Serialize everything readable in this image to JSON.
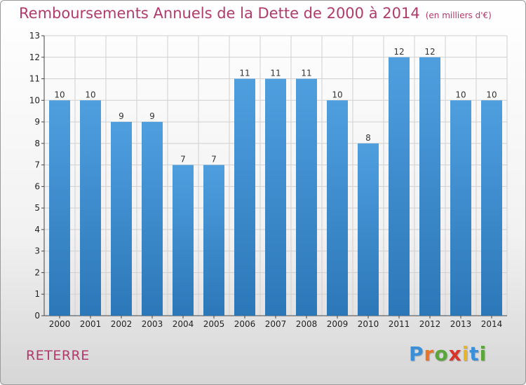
{
  "chart_data": {
    "type": "bar",
    "title": "Remboursements Annuels de la Dette de 2000 à 2014",
    "subtitle": "(en milliers d'€)",
    "categories": [
      "2000",
      "2001",
      "2002",
      "2003",
      "2004",
      "2005",
      "2006",
      "2007",
      "2008",
      "2009",
      "2010",
      "2011",
      "2012",
      "2013",
      "2014"
    ],
    "values": [
      10,
      10,
      9,
      9,
      7,
      7,
      11,
      11,
      11,
      10,
      8,
      12,
      12,
      10,
      10
    ],
    "ylim": [
      0,
      13
    ],
    "yticks": [
      0,
      1,
      2,
      3,
      4,
      5,
      6,
      7,
      8,
      9,
      10,
      11,
      12,
      13
    ],
    "xlabel": "",
    "ylabel": "",
    "grid": true,
    "bar_color": "#4f9fdf",
    "bar_color_dark": "#2c77b8"
  },
  "footer": {
    "commune": "RETERRE",
    "logo_letters": [
      "P",
      "r",
      "o",
      "x",
      "i",
      "t",
      "i"
    ],
    "logo_colors": [
      "#3a8fd9",
      "#e8742a",
      "#5aa63a",
      "#d9342b",
      "#e8b52a",
      "#3a8fd9",
      "#5aa63a"
    ]
  },
  "colors": {
    "title": "#b03a6a",
    "grid": "#d0d0d0"
  }
}
